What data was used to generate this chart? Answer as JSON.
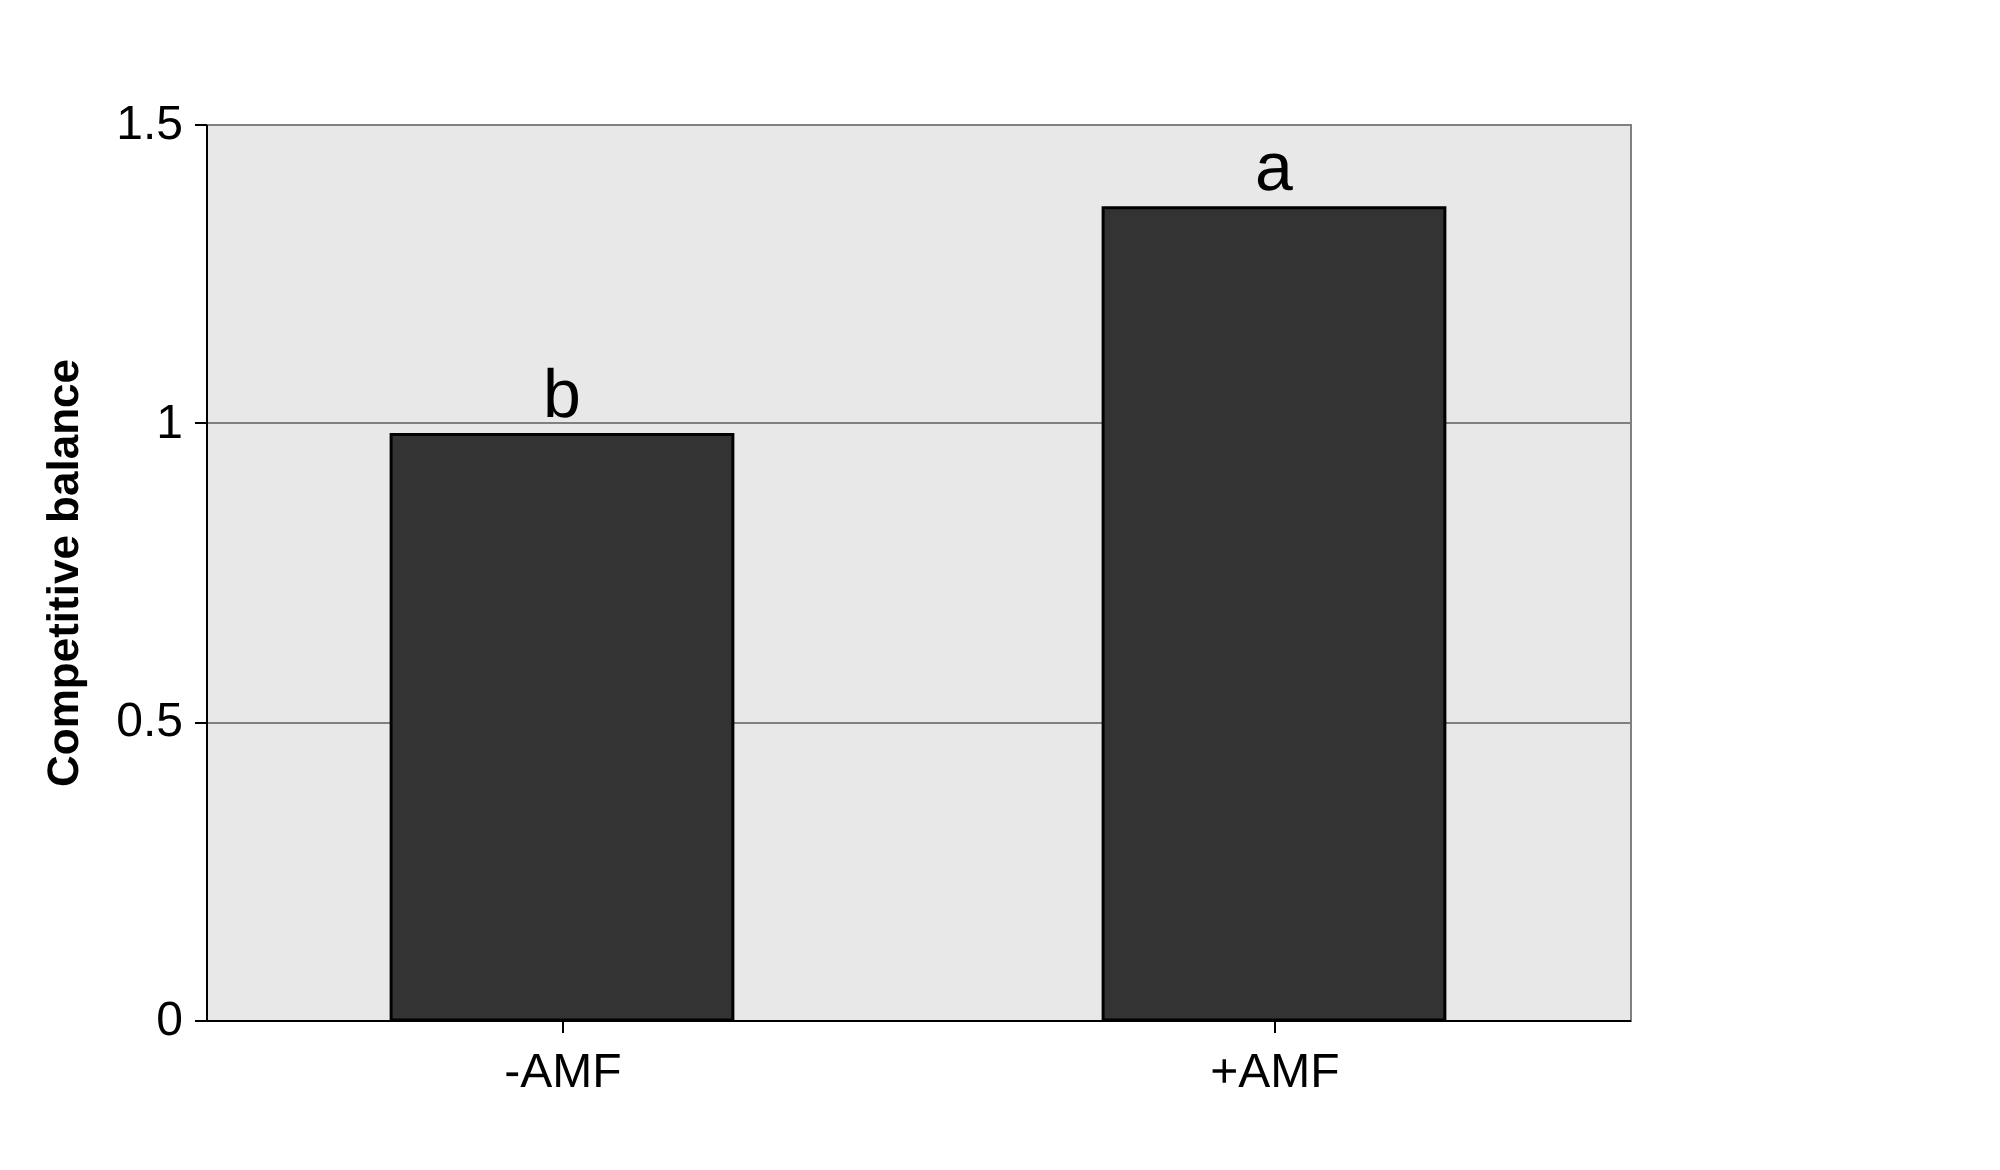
{
  "chart_data": {
    "type": "bar",
    "ylabel": "Competitive balance",
    "categories": [
      "-AMF",
      "+AMF"
    ],
    "series": [
      {
        "color": "#333333",
        "values": [
          0.98,
          1.36
        ]
      }
    ],
    "ylim": [
      0,
      1.5
    ],
    "yticks": [
      0,
      0.5,
      1,
      1.5
    ],
    "grid": "y",
    "annotations": [
      {
        "text": "b",
        "x": "-AMF",
        "y": 0.98
      },
      {
        "text": "a",
        "x": "+AMF",
        "y": 1.36
      }
    ]
  }
}
